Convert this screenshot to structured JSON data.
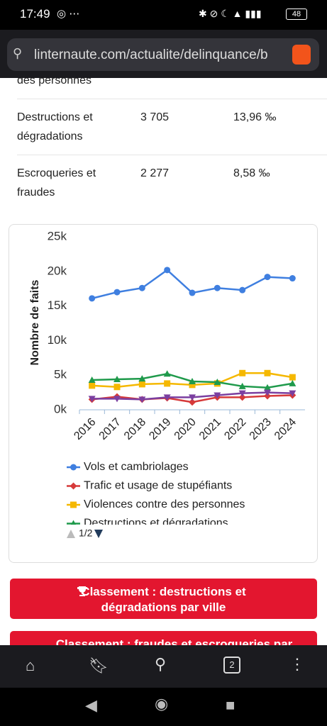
{
  "status": {
    "time": "17:49",
    "battery": "48"
  },
  "url": "linternaute.com/actualite/delinquance/b",
  "table": {
    "rows": [
      [
        "des personnes"
      ],
      [
        "Destructions et dégradations",
        "3 705",
        "13,96 ‰"
      ],
      [
        "Escroqueries et fraudes",
        "2 277",
        "8,58 ‰"
      ]
    ]
  },
  "chart_data": {
    "type": "line",
    "y_label": "Nombre de faits",
    "categories": [
      "2016",
      "2017",
      "2018",
      "2019",
      "2020",
      "2021",
      "2022",
      "2023",
      "2024"
    ],
    "ylim": [
      0,
      25000
    ],
    "yticks": [
      {
        "value": 0,
        "label": "0k"
      },
      {
        "value": 5000,
        "label": "5k"
      },
      {
        "value": 10000,
        "label": "10k"
      },
      {
        "value": 15000,
        "label": "15k"
      },
      {
        "value": 20000,
        "label": "20k"
      },
      {
        "value": 25000,
        "label": "25k"
      }
    ],
    "series": [
      {
        "name": "Vols et cambriolages",
        "color": "#3f7fe0",
        "marker": "circle",
        "values": [
          16100,
          17000,
          17600,
          20200,
          16900,
          17600,
          17300,
          19200,
          19000
        ]
      },
      {
        "name": "Trafic et usage de stupéfiants",
        "color": "#d63a3a",
        "marker": "diamond",
        "values": [
          1500,
          1900,
          1500,
          1700,
          1100,
          1800,
          1800,
          2000,
          2100
        ]
      },
      {
        "name": "Violences contre des personnes",
        "color": "#f5b800",
        "marker": "square",
        "values": [
          3500,
          3300,
          3700,
          3800,
          3600,
          3800,
          5300,
          5300,
          4700
        ]
      },
      {
        "name": "Destructions et dégradations",
        "color": "#1f9a4b",
        "marker": "triangle",
        "values": [
          4300,
          4400,
          4500,
          5200,
          4100,
          4000,
          3400,
          3200,
          3800
        ]
      },
      {
        "color": "#7b3fa0",
        "marker": "triangle-down",
        "values": [
          1600,
          1600,
          1500,
          1800,
          1800,
          2100,
          2400,
          2500,
          2400
        ]
      }
    ],
    "legend_page": "1/2"
  },
  "buttons": [
    "Classement : destructions et dégradations par ville",
    "Classement : fraudes et escroqueries par"
  ],
  "nav": {
    "tabs": "2"
  }
}
